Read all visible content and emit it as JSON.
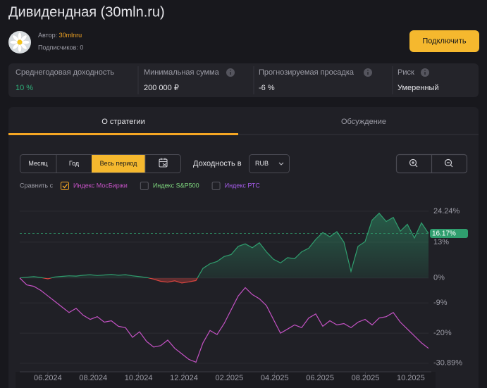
{
  "header": {
    "title": "Дивидендная (30mln.ru)",
    "author_label": "Автор:",
    "author": "30mlnru",
    "subscribers": "Подписчиков: 0",
    "button": "Подключить"
  },
  "stats": [
    {
      "label": "Среднегодовая доходность",
      "value": "10 %"
    },
    {
      "label": "Минимальная сумма",
      "value": "200 000 ₽"
    },
    {
      "label": "Прогнозируемая просадка",
      "value": "-6 %"
    },
    {
      "label": "Риск",
      "value": "Умеренный"
    }
  ],
  "tabs": [
    "О стратегии",
    "Обсуждение"
  ],
  "controls": {
    "periods": [
      "Месяц",
      "Год",
      "Весь период"
    ],
    "yield_label": "Доходность в",
    "currency": "RUB"
  },
  "chart_data": {
    "type": "area",
    "xlim": [
      4.76,
      22.78
    ],
    "xticks": [
      {
        "value": 6,
        "label": "06.2024"
      },
      {
        "value": 8,
        "label": "08.2024"
      },
      {
        "value": 10,
        "label": "10.2024"
      },
      {
        "value": 12,
        "label": "12.2024"
      },
      {
        "value": 14,
        "label": "02.2025"
      },
      {
        "value": 16,
        "label": "04.2025"
      },
      {
        "value": 18,
        "label": "06.2025"
      },
      {
        "value": 20,
        "label": "08.2025"
      },
      {
        "value": 22,
        "label": "10.2025"
      }
    ],
    "ylim": [
      -34,
      28.3
    ],
    "yticks": [
      {
        "value": 24.24,
        "label": "24.24%"
      },
      {
        "value": 13,
        "label": "13%"
      },
      {
        "value": 0,
        "label": "0%"
      },
      {
        "value": -9,
        "label": "-9%"
      },
      {
        "value": -20,
        "label": "-20%"
      },
      {
        "value": -30.89,
        "label": "-30.89%"
      }
    ],
    "grid": true,
    "current_label": {
      "value": 16.17,
      "label": "16.17%"
    },
    "series": [
      {
        "color": "#2f9e6e",
        "negative_color": "#d9443f",
        "values": [
          0,
          0.3,
          0.5,
          0.2,
          -0.3,
          0.4,
          0.6,
          0.8,
          0.7,
          1.0,
          1.2,
          0.9,
          1.1,
          1.3,
          1.0,
          1.2,
          0.8,
          0.5,
          0.2,
          -0.4,
          -1.2,
          -1.5,
          -1.0,
          -1.8,
          -1.4,
          -0.9,
          3.5,
          5.2,
          6.0,
          7.8,
          8.5,
          11.5,
          12.4,
          11.0,
          12.8,
          9.5,
          6.8,
          5.5,
          7.4,
          7.0,
          9.5,
          10.8,
          14.0,
          16.5,
          15.0,
          16.8,
          13.0,
          2.4,
          11.5,
          13.2,
          21.0,
          23.5,
          20.5,
          22.0,
          17.0,
          19.5,
          14.5,
          20.0,
          16.17
        ]
      },
      {
        "name": "Индекс МосБиржи",
        "color": "#c452c4",
        "checked": true,
        "values": [
          0,
          -2.5,
          -3.0,
          -4.5,
          -6.5,
          -8.5,
          -10.5,
          -12.5,
          -11.0,
          -13.5,
          -15.0,
          -14.0,
          -16.0,
          -15.5,
          -17.5,
          -18.0,
          -21.5,
          -19.5,
          -23.0,
          -25.0,
          -24.5,
          -22.5,
          -25.5,
          -27.5,
          -29.5,
          -30.5,
          -23.5,
          -19.0,
          -20.5,
          -16.5,
          -11.5,
          -6.5,
          -3.5,
          -6.0,
          -7.5,
          -10.0,
          -15.0,
          -20.0,
          -18.5,
          -17.0,
          -18.0,
          -14.5,
          -13.0,
          -17.5,
          -15.5,
          -17.0,
          -16.5,
          -18.0,
          -16.0,
          -15.0,
          -17.0,
          -14.5,
          -14.0,
          -12.5,
          -16.0,
          -18.5,
          -21.0,
          -23.5,
          -25.5
        ]
      }
    ],
    "compare_label": "Сравнить с",
    "compare_options": [
      {
        "name": "Индекс S&P500",
        "color": "#7ed67e",
        "checked": false
      },
      {
        "name": "Индекс РТС",
        "color": "#a45be8",
        "checked": false
      }
    ]
  }
}
